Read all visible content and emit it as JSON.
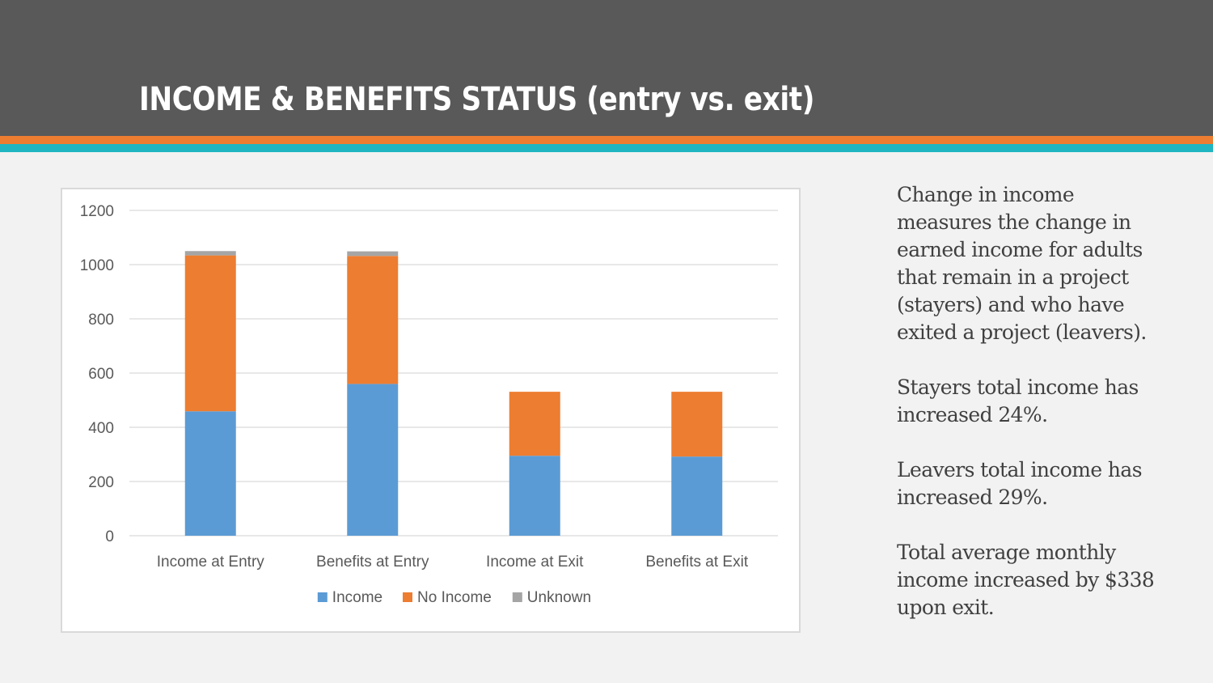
{
  "slide": {
    "title": "INCOME & BENEFITS STATUS (entry vs. exit)",
    "paragraphs": [
      "Change in income measures the change in earned income for adults that remain in a project (stayers) and who have exited a project (leavers).",
      "Stayers total income has increased 24%.",
      "Leavers total income has increased 29%.",
      "Total average monthly income increased by $338 upon exit."
    ],
    "colors": {
      "header": "#595959",
      "stripe_orange": "#ed7d31",
      "stripe_teal": "#1fb6c1"
    }
  },
  "chart_data": {
    "type": "bar",
    "stacked": true,
    "categories": [
      "Income at Entry",
      "Benefits at Entry",
      "Income at Exit",
      "Benefits at Exit"
    ],
    "series": [
      {
        "name": "Income",
        "color": "#5b9bd5",
        "values": [
          459,
          560,
          295,
          292
        ]
      },
      {
        "name": "No Income",
        "color": "#ed7d31",
        "values": [
          575,
          472,
          236,
          239
        ]
      },
      {
        "name": "Unknown",
        "color": "#a5a5a5",
        "values": [
          16,
          17,
          0,
          0
        ]
      }
    ],
    "yticks": [
      "0",
      "200",
      "400",
      "600",
      "800",
      "1000",
      "1200"
    ],
    "ylim": [
      0,
      1200
    ],
    "grid": true,
    "legend": "bottom"
  }
}
